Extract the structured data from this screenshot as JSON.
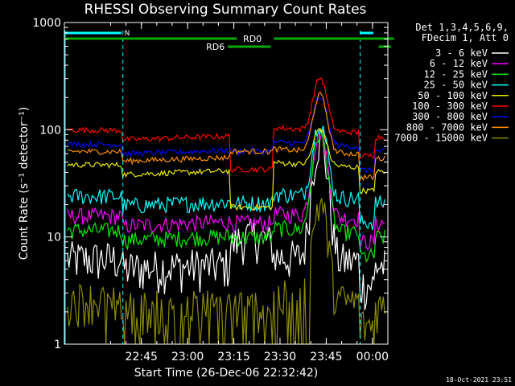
{
  "chart_data": {
    "type": "line",
    "title": "RHESSI Observing Summary Count Rates",
    "xlabel": "Start Time (26-Dec-06 22:32:42)",
    "ylabel": "Count Rate (s⁻¹ detector⁻¹)",
    "yscale": "log",
    "ylim": [
      1,
      1000
    ],
    "xlim_minutes": [
      -10,
      95
    ],
    "x_ticks": [
      {
        "m": 15,
        "label": "22:45"
      },
      {
        "m": 30,
        "label": "23:00"
      },
      {
        "m": 45,
        "label": "23:15"
      },
      {
        "m": 60,
        "label": "23:30"
      },
      {
        "m": 75,
        "label": "23:45"
      },
      {
        "m": 90,
        "label": "00:00"
      }
    ],
    "y_ticks": [
      {
        "v": 1,
        "label": "1"
      },
      {
        "v": 10,
        "label": "10"
      },
      {
        "v": 100,
        "label": "100"
      },
      {
        "v": 1000,
        "label": "1000"
      }
    ],
    "legend_header": [
      "Det 1,3,4,5,6,9,",
      "FDecim 1, Att 0"
    ],
    "series": [
      {
        "name": "3 - 6 keV",
        "color": "#ffffff",
        "base": 6.0
      },
      {
        "name": "6 - 12 keV",
        "color": "#ff00ff",
        "base": 15.0
      },
      {
        "name": "12 - 25 keV",
        "color": "#00ee00",
        "base": 11.0
      },
      {
        "name": "25 - 50 keV",
        "color": "#00ffff",
        "base": 23.0
      },
      {
        "name": "50 - 100 keV",
        "color": "#e8e800",
        "base": 45.0
      },
      {
        "name": "100 - 300 keV",
        "color": "#ff0000",
        "base": 95.0
      },
      {
        "name": "300 - 800 keV",
        "color": "#0000ff",
        "base": 70.0
      },
      {
        "name": "800 - 7000 keV",
        "color": "#ff8c00",
        "base": 60.0
      },
      {
        "name": "7000 - 15000 keV",
        "color": "#8b8b00",
        "base": 2.5
      }
    ],
    "flags": [
      {
        "label": "N",
        "color": "#00ffff"
      },
      {
        "label": "RD0",
        "color": "#00aa00"
      },
      {
        "label": "RD6",
        "color": "#00aa00"
      }
    ],
    "peak_time": "23:45",
    "timestamp": "18-Oct-2021 23:51"
  }
}
